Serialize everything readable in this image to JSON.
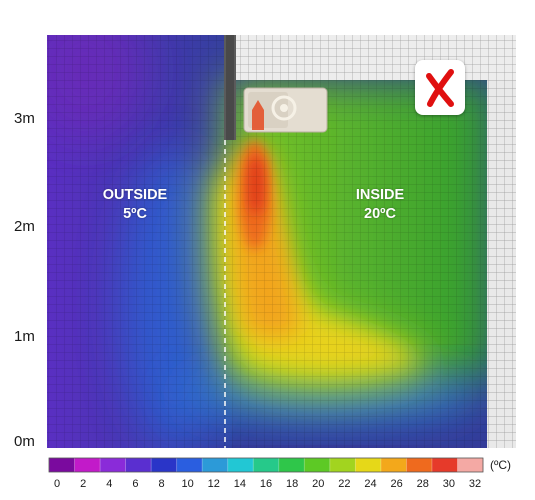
{
  "y_axis": {
    "labels": [
      "3m",
      "2m",
      "1m",
      "0m"
    ]
  },
  "zones": {
    "outside": {
      "label": "OUTSIDE",
      "temperature": "5ºC"
    },
    "inside": {
      "label": "INSIDE",
      "temperature": "20ºC"
    }
  },
  "colorbar": {
    "ticks": [
      "0",
      "2",
      "4",
      "6",
      "8",
      "10",
      "12",
      "14",
      "16",
      "18",
      "20",
      "22",
      "24",
      "26",
      "28",
      "30",
      "32"
    ],
    "unit": "(ºC)",
    "colors": [
      "#7a0a9e",
      "#c21ac9",
      "#8a2bd9",
      "#5a2fd0",
      "#2a35c8",
      "#2a5ee0",
      "#2c9ad8",
      "#22c7d4",
      "#26c98a",
      "#2fc64a",
      "#5dc925",
      "#a2d41f",
      "#e6d818",
      "#f3a81b",
      "#ef6a1e",
      "#e63a2a",
      "#f4a9a4"
    ]
  },
  "status_icon": "red-x-icon",
  "colors": {
    "outside": "#3a3e9a",
    "inside": "#43a82c",
    "wall": "#9a9a9a",
    "x_mark": "#e01010"
  }
}
